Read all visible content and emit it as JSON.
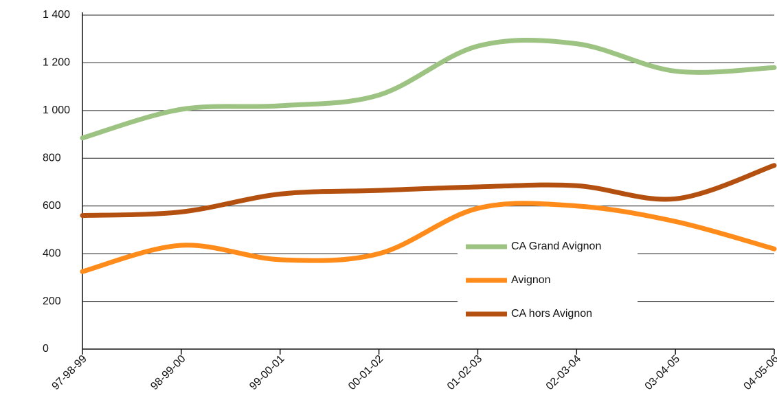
{
  "chart_data": {
    "type": "line",
    "categories": [
      "97-98-99",
      "98-99-00",
      "99-00-01",
      "00-01-02",
      "01-02-03",
      "02-03-04",
      "03-04-05",
      "04-05-06"
    ],
    "series": [
      {
        "name": "CA Grand Avignon",
        "color": "#9dc383",
        "values": [
          885,
          1005,
          1020,
          1065,
          1270,
          1280,
          1165,
          1180
        ]
      },
      {
        "name": "Avignon",
        "color": "#ff8c1a",
        "values": [
          325,
          435,
          375,
          400,
          590,
          600,
          535,
          420
        ]
      },
      {
        "name": "CA hors Avignon",
        "color": "#b4500f",
        "values": [
          560,
          575,
          650,
          665,
          680,
          685,
          630,
          770
        ]
      }
    ],
    "ylim": [
      0,
      1400
    ],
    "yticks": [
      0,
      200,
      400,
      600,
      800,
      {
        "value": 1000,
        "label": "1 000"
      },
      {
        "value": 1200,
        "label": "1 200"
      },
      {
        "value": 1400,
        "label": "1 400"
      }
    ],
    "grid": true,
    "legend": "lower right"
  }
}
